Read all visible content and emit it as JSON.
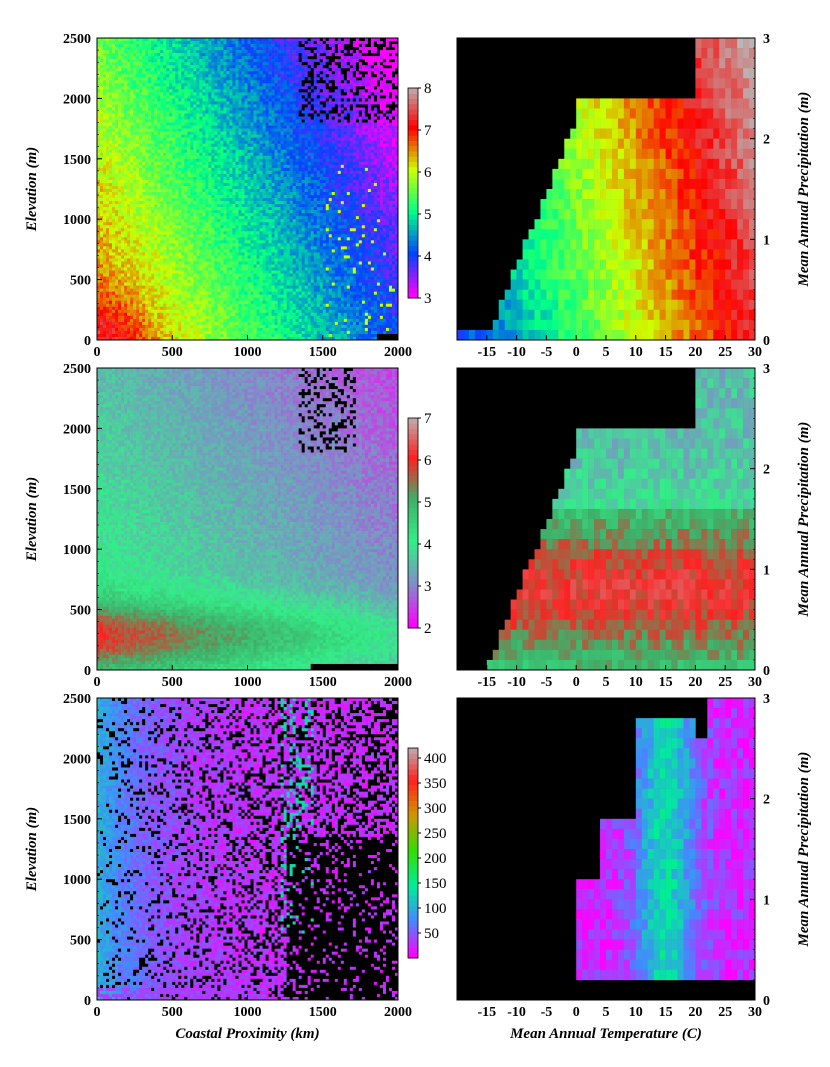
{
  "chart_data": [
    {
      "type": "heatmap",
      "xlabel": "",
      "ylabel": "Elevation (m)",
      "xticks": [
        "0",
        "500",
        "1000",
        "1500",
        "2000"
      ],
      "yticks": [
        "0",
        "500",
        "1000",
        "1500",
        "2000",
        "2500"
      ],
      "xlim": [
        0,
        2000
      ],
      "ylim": [
        0,
        2500
      ],
      "colorbar": {
        "range": [
          3,
          8
        ],
        "ticks": [
          "3",
          "4",
          "5",
          "6",
          "7",
          "8"
        ],
        "colors": [
          "#ff00ff",
          "#0044ff",
          "#00ff88",
          "#ccff00",
          "#ff0000",
          "#b8b8b8"
        ]
      }
    },
    {
      "type": "heatmap",
      "xlabel": "",
      "ylabel": "Mean Annual Precipitation (m)",
      "xticks": [
        "-15",
        "-10",
        "-5",
        "0",
        "5",
        "10",
        "15",
        "20",
        "25",
        "30"
      ],
      "yticks": [
        "0",
        "1",
        "2",
        "3"
      ],
      "xlim": [
        -20,
        30
      ],
      "ylim": [
        0,
        3
      ]
    },
    {
      "type": "heatmap",
      "xlabel": "",
      "ylabel": "Elevation (m)",
      "xticks": [
        "0",
        "500",
        "1000",
        "1500",
        "2000"
      ],
      "yticks": [
        "0",
        "500",
        "1000",
        "1500",
        "2000",
        "2500"
      ],
      "xlim": [
        0,
        2000
      ],
      "ylim": [
        0,
        2500
      ],
      "colorbar": {
        "range": [
          2,
          7
        ],
        "ticks": [
          "2",
          "3",
          "4",
          "5",
          "6",
          "7"
        ],
        "colors": [
          "#ff00ff",
          "#7f8ec8",
          "#33ee88",
          "#3fb06a",
          "#ff2020",
          "#b8b8b8"
        ]
      }
    },
    {
      "type": "heatmap",
      "xlabel": "",
      "ylabel": "Mean Annual Precipitation (m)",
      "xticks": [
        "-15",
        "-10",
        "-5",
        "0",
        "5",
        "10",
        "15",
        "20",
        "25",
        "30"
      ],
      "yticks": [
        "0",
        "1",
        "2",
        "3"
      ],
      "xlim": [
        -20,
        30
      ],
      "ylim": [
        0,
        3
      ]
    },
    {
      "type": "heatmap",
      "xlabel": "Coastal Proximity (km)",
      "ylabel": "Elevation (m)",
      "xticks": [
        "0",
        "500",
        "1000",
        "1500",
        "2000"
      ],
      "yticks": [
        "0",
        "500",
        "1000",
        "1500",
        "2000",
        "2500"
      ],
      "xlim": [
        0,
        2000
      ],
      "ylim": [
        0,
        2500
      ],
      "colorbar": {
        "range": [
          0,
          420
        ],
        "ticks": [
          "50",
          "100",
          "150",
          "200",
          "250",
          "300",
          "350",
          "400"
        ],
        "colors": [
          "#ff00ff",
          "#4488ff",
          "#00ee99",
          "#33dd00",
          "#cc9900",
          "#ff2020",
          "#b8b8b8"
        ]
      }
    },
    {
      "type": "heatmap",
      "xlabel": "Mean Annual Temperature (C)",
      "ylabel": "Mean Annual Precipitation (m)",
      "xticks": [
        "-15",
        "-10",
        "-5",
        "0",
        "5",
        "10",
        "15",
        "20",
        "25",
        "30"
      ],
      "yticks": [
        "0",
        "1",
        "2",
        "3"
      ],
      "xlim": [
        -20,
        30
      ],
      "ylim": [
        0,
        3
      ]
    }
  ]
}
